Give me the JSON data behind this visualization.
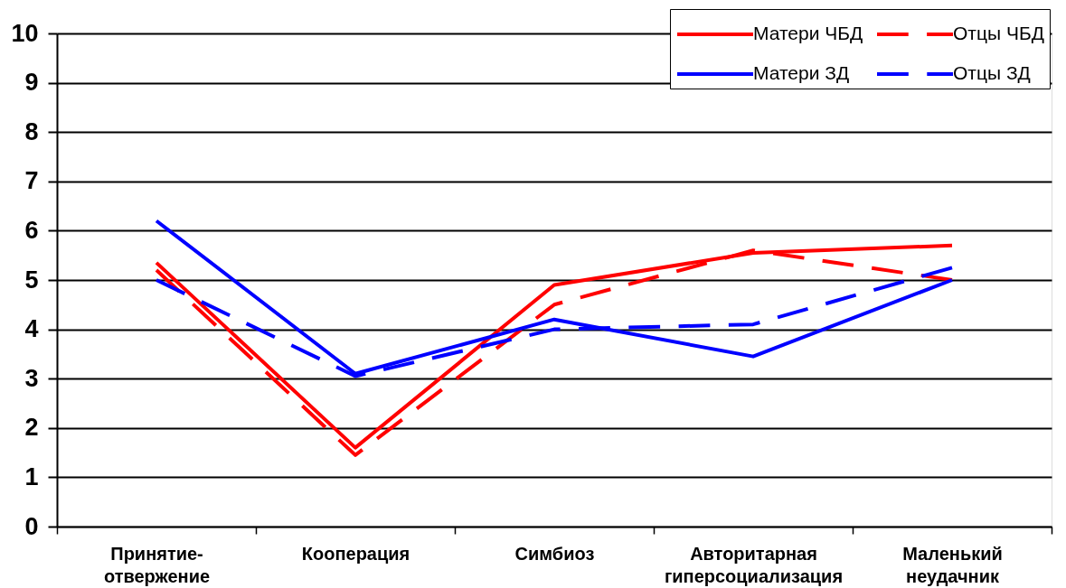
{
  "chart_data": {
    "type": "line",
    "categories": [
      "Принятие-отвержение",
      "Кооперация",
      "Симбиоз",
      "Авторитарная гиперсоциализация",
      "Маленький неудачник"
    ],
    "series": [
      {
        "name": "Матери ЧБД",
        "color": "#ff0000",
        "line_style": "solid",
        "values": [
          5.35,
          1.6,
          4.9,
          5.55,
          5.7
        ]
      },
      {
        "name": "Отцы ЧБД",
        "color": "#ff0000",
        "line_style": "dashed",
        "values": [
          5.2,
          1.45,
          4.5,
          5.6,
          5.0
        ]
      },
      {
        "name": "Матери ЗД",
        "color": "#0000ff",
        "line_style": "solid",
        "values": [
          6.2,
          3.1,
          4.2,
          3.45,
          5.0
        ]
      },
      {
        "name": "Отцы ЗД",
        "color": "#0000ff",
        "line_style": "dashed",
        "values": [
          5.0,
          3.05,
          4.0,
          4.1,
          5.25
        ]
      }
    ],
    "ylim": [
      0,
      10
    ],
    "yticks": [
      0,
      1,
      2,
      3,
      4,
      5,
      6,
      7,
      8,
      9,
      10
    ],
    "grid": "y",
    "legend": "top right"
  }
}
